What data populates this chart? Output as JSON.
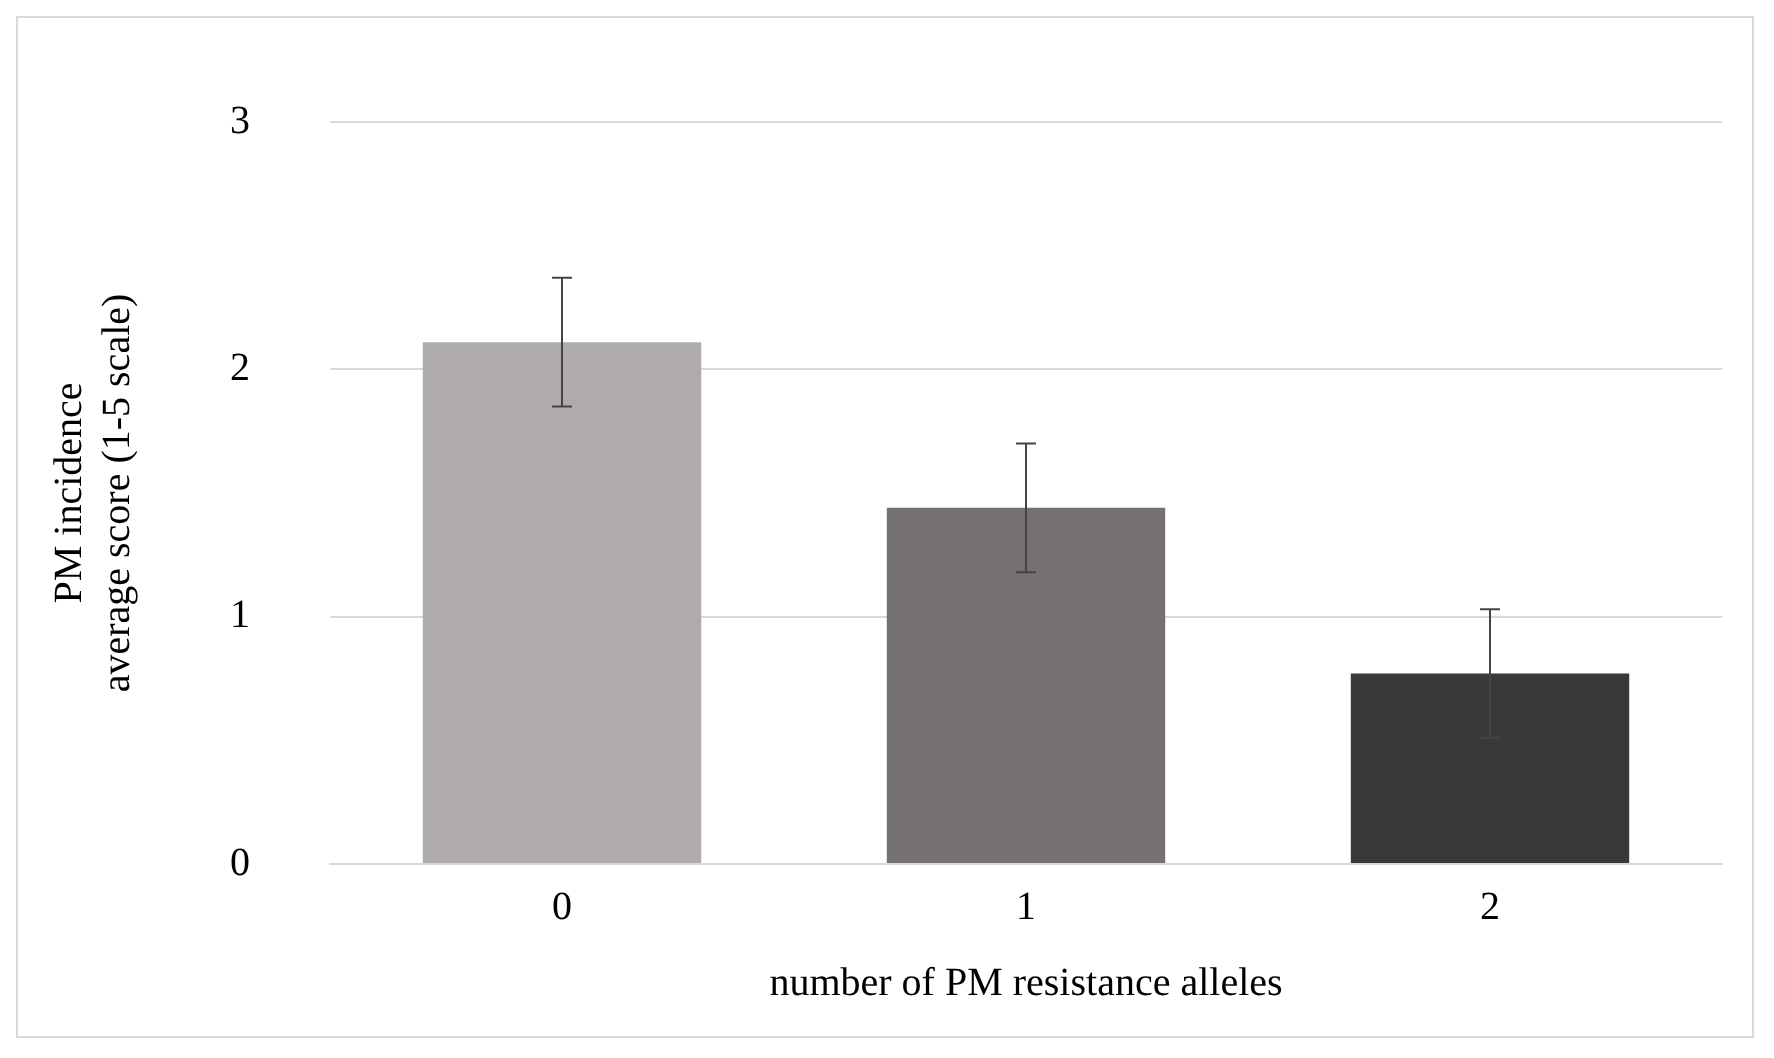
{
  "chart_data": {
    "type": "bar",
    "xlabel": "number of PM resistance alleles",
    "ylabel": "PM incidence\naverage score (1-5 scale)",
    "categories": [
      "0",
      "1",
      "2"
    ],
    "values": [
      2.11,
      1.44,
      0.77
    ],
    "errors": [
      0.26,
      0.26,
      0.26
    ],
    "colors": [
      "#afabab",
      "#767171",
      "#3b3838"
    ],
    "ylim": [
      0,
      3
    ],
    "yticks": [
      0,
      1,
      2,
      3
    ],
    "grid": "y",
    "legend": false
  }
}
